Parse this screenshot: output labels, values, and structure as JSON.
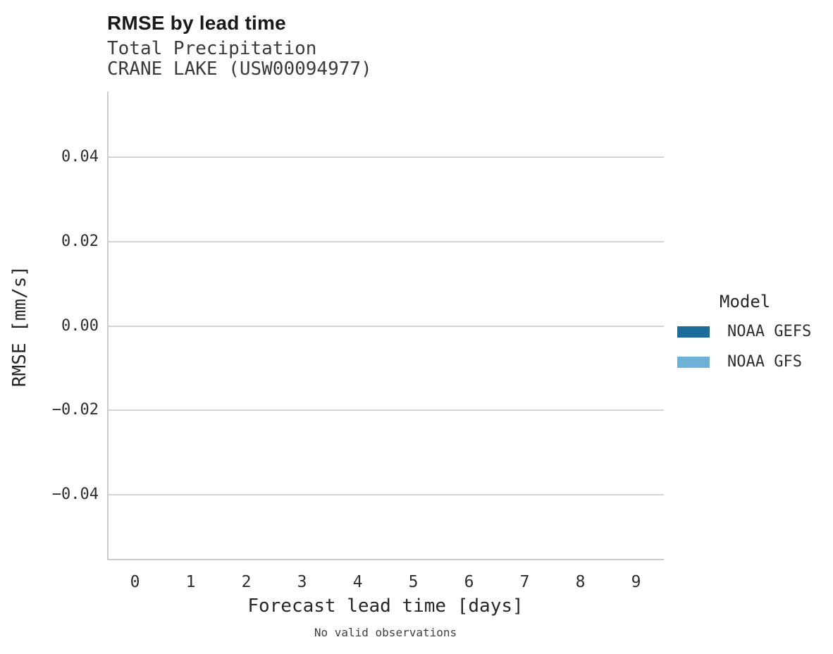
{
  "header": {
    "title": "RMSE by lead time",
    "subtitle_line1": "Total Precipitation",
    "subtitle_line2": "CRANE LAKE (USW00094977)"
  },
  "chart_data": {
    "type": "bar",
    "title": "RMSE by lead time",
    "subtitle": [
      "Total Precipitation",
      "CRANE LAKE (USW00094977)"
    ],
    "xlabel": "Forecast lead time [days]",
    "ylabel": "RMSE [mm/s]",
    "categories": [
      "0",
      "1",
      "2",
      "3",
      "4",
      "5",
      "6",
      "7",
      "8",
      "9"
    ],
    "series": [
      {
        "name": "NOAA GEFS",
        "color": "#1c6d9c",
        "values": []
      },
      {
        "name": "NOAA GFS",
        "color": "#6db1d9",
        "values": []
      }
    ],
    "ylim": [
      -0.0555,
      0.0555
    ],
    "yticks": [
      {
        "value": 0.04,
        "label": "0.04"
      },
      {
        "value": 0.02,
        "label": "0.02"
      },
      {
        "value": 0.0,
        "label": "0.00"
      },
      {
        "value": -0.02,
        "label": "−0.02"
      },
      {
        "value": -0.04,
        "label": "−0.04"
      }
    ],
    "grid": true,
    "legend_title": "Model",
    "legend_position": "right",
    "note": "No valid observations"
  },
  "colors": {
    "axis": "#cbcbcb",
    "gridline": "#d4d4d4",
    "title_text": "#191919",
    "subtitle_text": "#3a3a3a",
    "tick_text": "#2e2e2e",
    "series_dark_blue": "#1c6d9c",
    "series_light_blue": "#6db1d9"
  }
}
